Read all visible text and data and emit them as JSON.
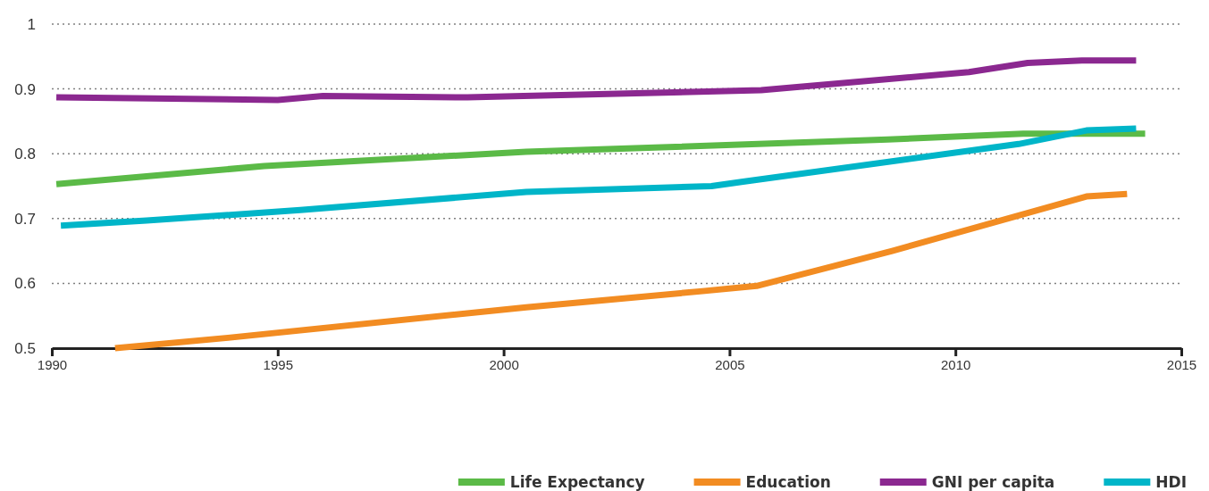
{
  "chart_data": {
    "type": "line",
    "xlim": [
      1990,
      2015
    ],
    "xticks": [
      1990,
      1995,
      2000,
      2005,
      2010,
      2015
    ],
    "ylim": [
      0.5,
      1
    ],
    "yticks": [
      0.5,
      0.6,
      0.7,
      0.8,
      0.9,
      1
    ],
    "grid": "y",
    "legend": "bottom right",
    "line_style": "solid",
    "marker": "none",
    "series": [
      {
        "name": "Life Expectancy",
        "color": "#5bba47",
        "x": [
          1990.1,
          1994.7,
          2000.5,
          2003.5,
          2008.5,
          2011.5,
          2014.2
        ],
        "values": [
          0.753,
          0.781,
          0.803,
          0.81,
          0.822,
          0.831,
          0.831
        ]
      },
      {
        "name": "Education",
        "color": "#f28c22",
        "x": [
          1991.4,
          1993.9,
          2000.5,
          2004.4,
          2005.6,
          2008.6,
          2012.9,
          2013.8
        ],
        "values": [
          0.5,
          0.516,
          0.563,
          0.588,
          0.596,
          0.65,
          0.734,
          0.738
        ]
      },
      {
        "name": "GNI per capita",
        "color": "#8b2890",
        "x": [
          1990.1,
          1995,
          1996,
          1999.2,
          2005.7,
          2010.3,
          2011.6,
          2012.8,
          2014
        ],
        "values": [
          0.887,
          0.883,
          0.889,
          0.887,
          0.898,
          0.926,
          0.94,
          0.944,
          0.944
        ]
      },
      {
        "name": "HDI",
        "color": "#00b5c8",
        "x": [
          1990.2,
          1992.1,
          1995.5,
          2000.5,
          2004.6,
          2005.3,
          2011.4,
          2012.9,
          2014
        ],
        "values": [
          0.689,
          0.697,
          0.713,
          0.741,
          0.75,
          0.757,
          0.815,
          0.836,
          0.839
        ]
      }
    ]
  }
}
